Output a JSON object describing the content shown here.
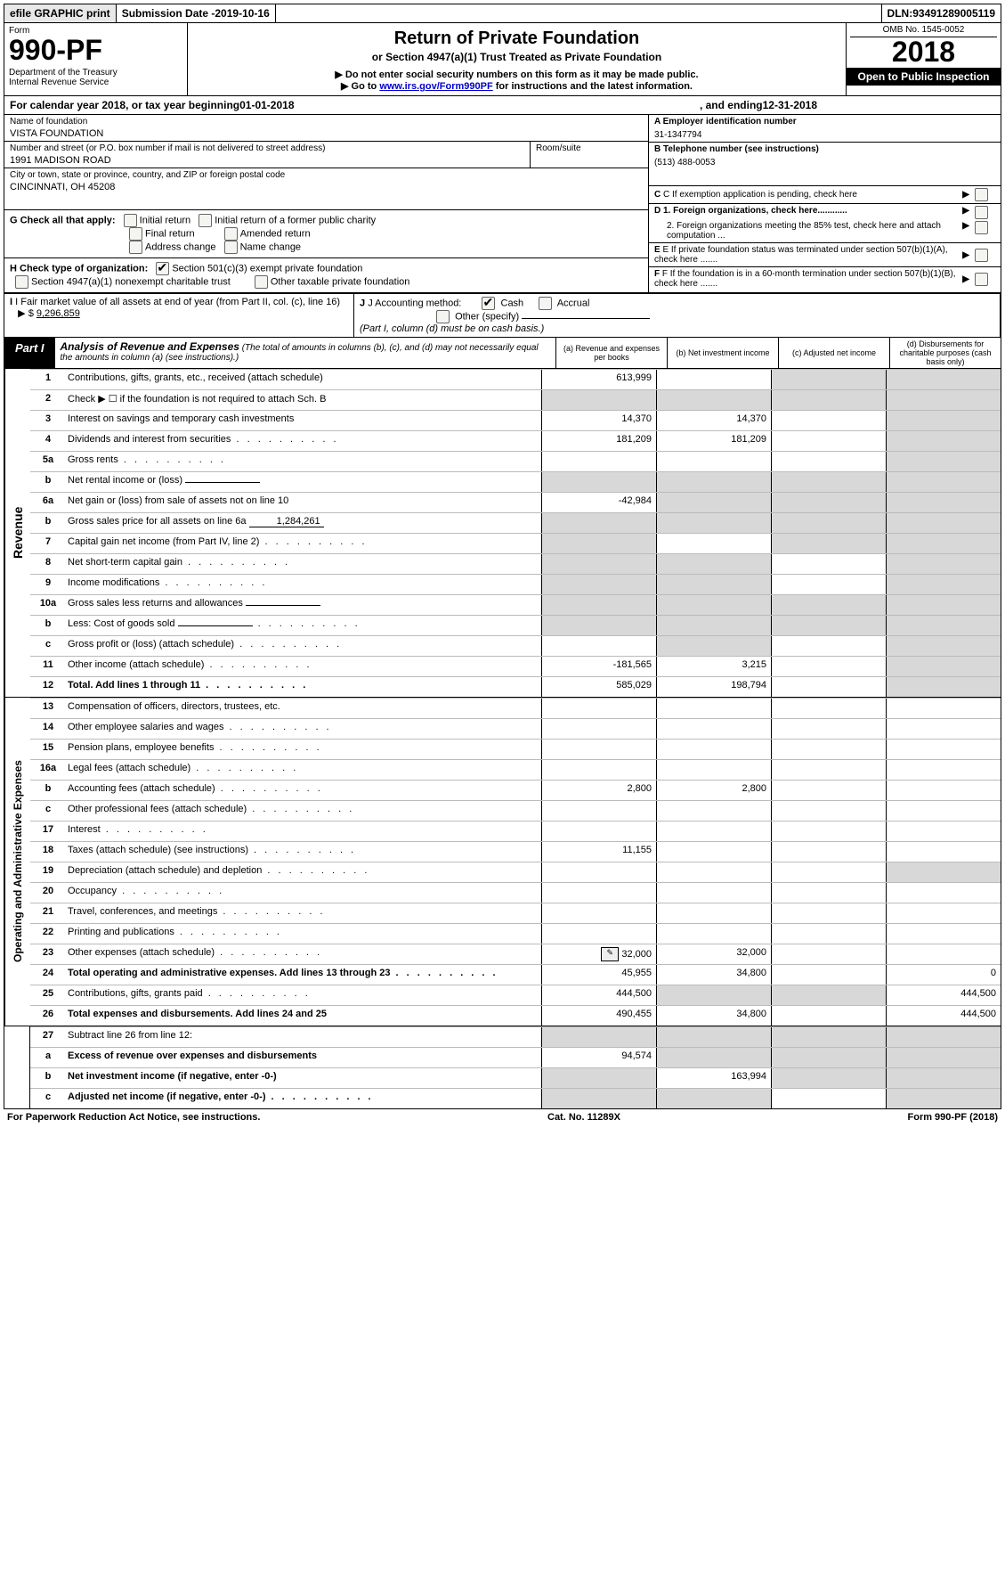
{
  "topbar": {
    "efile": "efile GRAPHIC print",
    "subdate_label": "Submission Date - ",
    "subdate": "2019-10-16",
    "dln_label": "DLN: ",
    "dln": "93491289005119"
  },
  "header": {
    "form_word": "Form",
    "form_num": "990-PF",
    "dept": "Department of the Treasury",
    "irs": "Internal Revenue Service",
    "title": "Return of Private Foundation",
    "subtitle": "or Section 4947(a)(1) Trust Treated as Private Foundation",
    "note1": "▶ Do not enter social security numbers on this form as it may be made public.",
    "note2_pre": "▶ Go to ",
    "note2_link": "www.irs.gov/Form990PF",
    "note2_post": " for instructions and the latest information.",
    "omb": "OMB No. 1545-0052",
    "year": "2018",
    "open": "Open to Public Inspection"
  },
  "calrow": {
    "pre": "For calendar year 2018, or tax year beginning ",
    "begin": "01-01-2018",
    "mid": " , and ending ",
    "end": "12-31-2018"
  },
  "entity": {
    "name_label": "Name of foundation",
    "name": "VISTA FOUNDATION",
    "addr_label": "Number and street (or P.O. box number if mail is not delivered to street address)",
    "addr": "1991 MADISON ROAD",
    "room_label": "Room/suite",
    "city_label": "City or town, state or province, country, and ZIP or foreign postal code",
    "city": "CINCINNATI, OH  45208",
    "a_label": "A Employer identification number",
    "a_val": "31-1347794",
    "b_label": "B Telephone number (see instructions)",
    "b_val": "(513) 488-0053",
    "c_label": "C If exemption application is pending, check here",
    "d1": "D 1. Foreign organizations, check here............",
    "d2": "2. Foreign organizations meeting the 85% test, check here and attach computation ...",
    "e_label": "E If private foundation status was terminated under section 507(b)(1)(A), check here .......",
    "f_label": "F If the foundation is in a 60-month termination under section 507(b)(1)(B), check here .......",
    "g_label": "G Check all that apply:",
    "g_opts": [
      "Initial return",
      "Initial return of a former public charity",
      "Final return",
      "Amended return",
      "Address change",
      "Name change"
    ],
    "h_label": "H Check type of organization:",
    "h_opts": [
      "Section 501(c)(3) exempt private foundation",
      "Section 4947(a)(1) nonexempt charitable trust",
      "Other taxable private foundation"
    ],
    "i_label": "I Fair market value of all assets at end of year (from Part II, col. (c), line 16)",
    "i_val": "9,296,859",
    "j_label": "J Accounting method:",
    "j_cash": "Cash",
    "j_accrual": "Accrual",
    "j_other": "Other (specify)",
    "j_note": "(Part I, column (d) must be on cash basis.)"
  },
  "part1": {
    "label": "Part I",
    "title": "Analysis of Revenue and Expenses",
    "title_note": "(The total of amounts in columns (b), (c), and (d) may not necessarily equal the amounts in column (a) (see instructions).)",
    "col_a": "(a) Revenue and expenses per books",
    "col_b": "(b) Net investment income",
    "col_c": "(c) Adjusted net income",
    "col_d": "(d) Disbursements for charitable purposes (cash basis only)"
  },
  "revenue_label": "Revenue",
  "opex_label": "Operating and Administrative Expenses",
  "lines": [
    {
      "n": "1",
      "d": "Contributions, gifts, grants, etc., received (attach schedule)",
      "a": "613,999",
      "b": "",
      "c": "grey",
      "dcol": "grey"
    },
    {
      "n": "2",
      "d": "Check ▶ ☐ if the foundation is not required to attach Sch. B",
      "a": "grey",
      "b": "grey",
      "c": "grey",
      "dcol": "grey",
      "nobold_not": true
    },
    {
      "n": "3",
      "d": "Interest on savings and temporary cash investments",
      "a": "14,370",
      "b": "14,370",
      "c": "",
      "dcol": "grey"
    },
    {
      "n": "4",
      "d": "Dividends and interest from securities",
      "a": "181,209",
      "b": "181,209",
      "c": "",
      "dcol": "grey",
      "dots": true
    },
    {
      "n": "5a",
      "d": "Gross rents",
      "a": "",
      "b": "",
      "c": "",
      "dcol": "grey",
      "dots": true
    },
    {
      "n": "b",
      "d": "Net rental income or (loss)",
      "a": "grey",
      "b": "grey",
      "c": "grey",
      "dcol": "grey",
      "inline": true
    },
    {
      "n": "6a",
      "d": "Net gain or (loss) from sale of assets not on line 10",
      "a": "-42,984",
      "b": "grey",
      "c": "grey",
      "dcol": "grey"
    },
    {
      "n": "b",
      "d": "Gross sales price for all assets on line 6a",
      "a": "grey",
      "b": "grey",
      "c": "grey",
      "dcol": "grey",
      "inline": true,
      "inline_val": "1,284,261"
    },
    {
      "n": "7",
      "d": "Capital gain net income (from Part IV, line 2)",
      "a": "grey",
      "b": "",
      "c": "grey",
      "dcol": "grey",
      "dots": true
    },
    {
      "n": "8",
      "d": "Net short-term capital gain",
      "a": "grey",
      "b": "grey",
      "c": "",
      "dcol": "grey",
      "dots": true
    },
    {
      "n": "9",
      "d": "Income modifications",
      "a": "grey",
      "b": "grey",
      "c": "",
      "dcol": "grey",
      "dots": true
    },
    {
      "n": "10a",
      "d": "Gross sales less returns and allowances",
      "a": "grey",
      "b": "grey",
      "c": "grey",
      "dcol": "grey",
      "inline": true
    },
    {
      "n": "b",
      "d": "Less: Cost of goods sold",
      "a": "grey",
      "b": "grey",
      "c": "grey",
      "dcol": "grey",
      "inline": true,
      "dots": true
    },
    {
      "n": "c",
      "d": "Gross profit or (loss) (attach schedule)",
      "a": "",
      "b": "grey",
      "c": "",
      "dcol": "grey",
      "dots": true
    },
    {
      "n": "11",
      "d": "Other income (attach schedule)",
      "a": "-181,565",
      "b": "3,215",
      "c": "",
      "dcol": "grey",
      "dots": true
    },
    {
      "n": "12",
      "d": "Total. Add lines 1 through 11",
      "a": "585,029",
      "b": "198,794",
      "c": "",
      "dcol": "grey",
      "dots": true,
      "bold": true
    }
  ],
  "expenses": [
    {
      "n": "13",
      "d": "Compensation of officers, directors, trustees, etc."
    },
    {
      "n": "14",
      "d": "Other employee salaries and wages",
      "dots": true
    },
    {
      "n": "15",
      "d": "Pension plans, employee benefits",
      "dots": true
    },
    {
      "n": "16a",
      "d": "Legal fees (attach schedule)",
      "dots": true
    },
    {
      "n": "b",
      "d": "Accounting fees (attach schedule)",
      "a": "2,800",
      "b": "2,800",
      "dots": true
    },
    {
      "n": "c",
      "d": "Other professional fees (attach schedule)",
      "dots": true
    },
    {
      "n": "17",
      "d": "Interest",
      "dots": true
    },
    {
      "n": "18",
      "d": "Taxes (attach schedule) (see instructions)",
      "a": "11,155",
      "dots": true
    },
    {
      "n": "19",
      "d": "Depreciation (attach schedule) and depletion",
      "dcol": "grey",
      "dots": true
    },
    {
      "n": "20",
      "d": "Occupancy",
      "dots": true
    },
    {
      "n": "21",
      "d": "Travel, conferences, and meetings",
      "dots": true
    },
    {
      "n": "22",
      "d": "Printing and publications",
      "dots": true
    },
    {
      "n": "23",
      "d": "Other expenses (attach schedule)",
      "a": "32,000",
      "b": "32,000",
      "dots": true,
      "icon": true
    },
    {
      "n": "24",
      "d": "Total operating and administrative expenses. Add lines 13 through 23",
      "a": "45,955",
      "b": "34,800",
      "dcol": "0",
      "bold": true,
      "dots": true,
      "twoLine": true
    },
    {
      "n": "25",
      "d": "Contributions, gifts, grants paid",
      "a": "444,500",
      "b": "grey",
      "c": "grey",
      "dcol": "444,500",
      "dots": true
    },
    {
      "n": "26",
      "d": "Total expenses and disbursements. Add lines 24 and 25",
      "a": "490,455",
      "b": "34,800",
      "dcol": "444,500",
      "bold": true
    }
  ],
  "bottom": [
    {
      "n": "27",
      "d": "Subtract line 26 from line 12:",
      "a": "grey",
      "b": "grey",
      "c": "grey",
      "dcol": "grey"
    },
    {
      "n": "a",
      "d": "Excess of revenue over expenses and disbursements",
      "a": "94,574",
      "b": "grey",
      "c": "grey",
      "dcol": "grey",
      "bold": true
    },
    {
      "n": "b",
      "d": "Net investment income (if negative, enter -0-)",
      "a": "grey",
      "b": "163,994",
      "c": "grey",
      "dcol": "grey",
      "bold": true
    },
    {
      "n": "c",
      "d": "Adjusted net income (if negative, enter -0-)",
      "a": "grey",
      "b": "grey",
      "c": "",
      "dcol": "grey",
      "bold": true,
      "dots": true
    }
  ],
  "footer": {
    "left": "For Paperwork Reduction Act Notice, see instructions.",
    "mid": "Cat. No. 11289X",
    "right": "Form 990-PF (2018)"
  },
  "colors": {
    "grey_cell": "#d8d8d8",
    "link": "#0000cc"
  }
}
